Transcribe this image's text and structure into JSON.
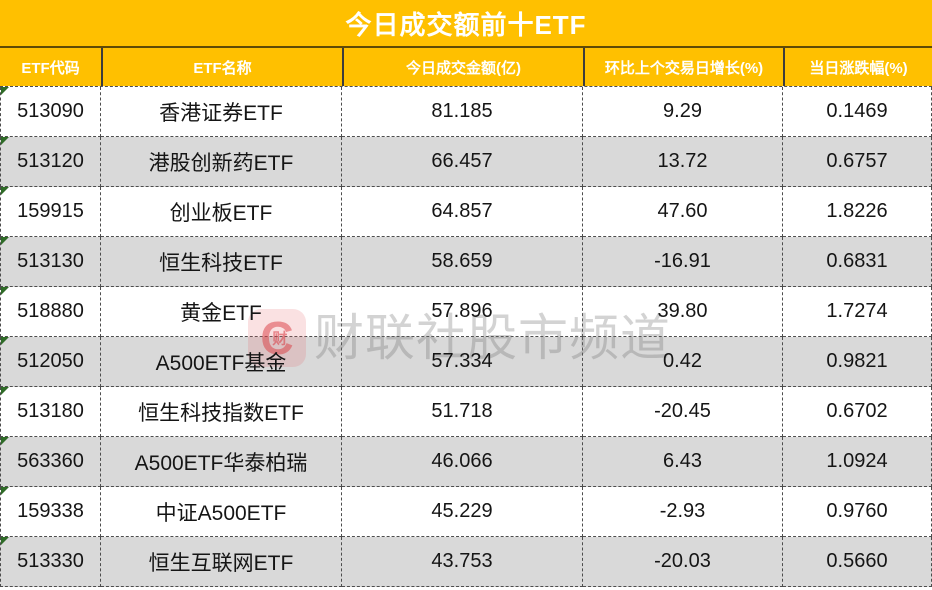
{
  "title": "今日成交额前十ETF",
  "table": {
    "headers": [
      {
        "label": "ETF代码"
      },
      {
        "label": "ETF名称"
      },
      {
        "label": "今日成交金额(亿)"
      },
      {
        "label": "环比上个交易日增长(%)"
      },
      {
        "label": "当日涨跌幅(%)"
      }
    ],
    "rows": [
      {
        "code": "513090",
        "name": "香港证券ETF",
        "amount": "81.185",
        "change": "9.29",
        "pct": "0.1469"
      },
      {
        "code": "513120",
        "name": "港股创新药ETF",
        "amount": "66.457",
        "change": "13.72",
        "pct": "0.6757"
      },
      {
        "code": "159915",
        "name": "创业板ETF",
        "amount": "64.857",
        "change": "47.60",
        "pct": "1.8226"
      },
      {
        "code": "513130",
        "name": "恒生科技ETF",
        "amount": "58.659",
        "change": "-16.91",
        "pct": "0.6831"
      },
      {
        "code": "518880",
        "name": "黄金ETF",
        "amount": "57.896",
        "change": "39.80",
        "pct": "1.7274"
      },
      {
        "code": "512050",
        "name": "A500ETF基金",
        "amount": "57.334",
        "change": "0.42",
        "pct": "0.9821"
      },
      {
        "code": "513180",
        "name": "恒生科技指数ETF",
        "amount": "51.718",
        "change": "-20.45",
        "pct": "0.6702"
      },
      {
        "code": "563360",
        "name": "A500ETF华泰柏瑞",
        "amount": "46.066",
        "change": "6.43",
        "pct": "1.0924"
      },
      {
        "code": "159338",
        "name": "中证A500ETF",
        "amount": "45.229",
        "change": "-2.93",
        "pct": "0.9760"
      },
      {
        "code": "513330",
        "name": "恒生互联网ETF",
        "amount": "43.753",
        "change": "-20.03",
        "pct": "0.5660"
      }
    ]
  },
  "watermark": {
    "logo_letter": "C",
    "logo_char": "财",
    "text": "财联社股市频道"
  },
  "colors": {
    "header_orange": "#FFC000",
    "row_alt_gray": "#D9D9D9",
    "title_text": "#FFFFFF",
    "watermark_gray": "#C9C9C9",
    "watermark_red": "#D9393F",
    "flag_green": "#2F6B27"
  },
  "chart_data": {
    "type": "table",
    "title": "今日成交额前十ETF",
    "columns": [
      "ETF代码",
      "ETF名称",
      "今日成交金额(亿)",
      "环比上个交易日增长(%)",
      "当日涨跌幅(%)"
    ],
    "rows": [
      [
        "513090",
        "香港证券ETF",
        81.185,
        9.29,
        0.1469
      ],
      [
        "513120",
        "港股创新药ETF",
        66.457,
        13.72,
        0.6757
      ],
      [
        "159915",
        "创业板ETF",
        64.857,
        47.6,
        1.8226
      ],
      [
        "513130",
        "恒生科技ETF",
        58.659,
        -16.91,
        0.6831
      ],
      [
        "518880",
        "黄金ETF",
        57.896,
        39.8,
        1.7274
      ],
      [
        "512050",
        "A500ETF基金",
        57.334,
        0.42,
        0.9821
      ],
      [
        "513180",
        "恒生科技指数ETF",
        51.718,
        -20.45,
        0.6702
      ],
      [
        "563360",
        "A500ETF华泰柏瑞",
        46.066,
        6.43,
        1.0924
      ],
      [
        "159338",
        "中证A500ETF",
        45.229,
        -2.93,
        0.976
      ],
      [
        "513330",
        "恒生互联网ETF",
        43.753,
        -20.03,
        0.566
      ]
    ]
  }
}
